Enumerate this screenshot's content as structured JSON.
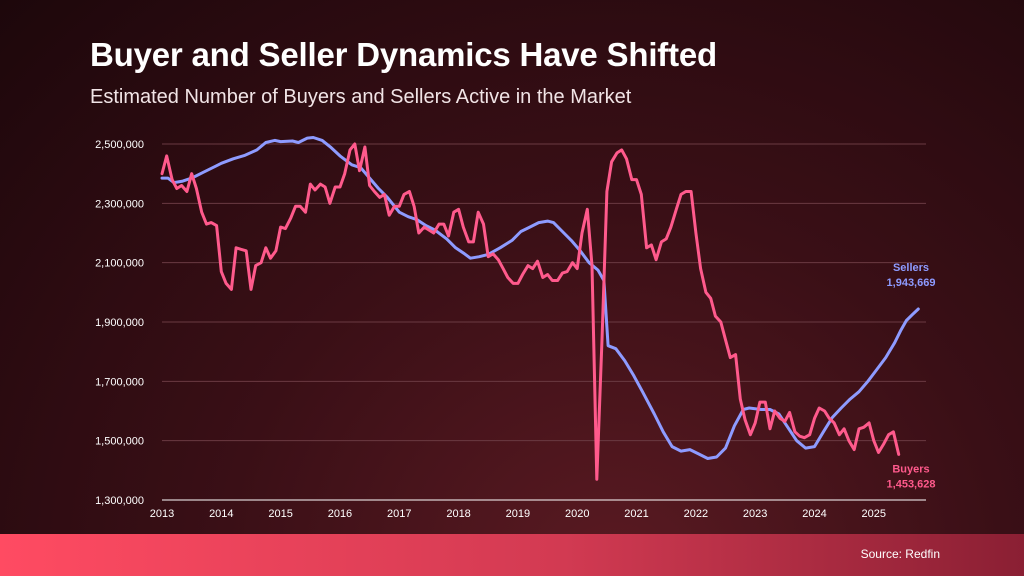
{
  "header": {
    "title": "Buyer and Seller Dynamics Have Shifted",
    "subtitle": "Estimated Number of Buyers and Sellers Active in the Market"
  },
  "footer": {
    "source": "Source: Redfin"
  },
  "colors": {
    "buyers": "#ff5a8c",
    "sellers": "#8e9bff",
    "grid": "#6a3a42",
    "axis": "#ffffff",
    "text": "#ffffff"
  },
  "chart_data": {
    "type": "line",
    "title": "Estimated Number of Buyers and Sellers Active in the Market",
    "xlabel": "",
    "ylabel": "",
    "xlim": [
      2013,
      2025.88
    ],
    "ylim": [
      1300000,
      2500000
    ],
    "yticks": [
      1300000,
      1500000,
      1700000,
      1900000,
      2100000,
      2300000,
      2500000
    ],
    "ytick_labels": [
      "1,300,000",
      "1,500,000",
      "1,700,000",
      "1,900,000",
      "2,100,000",
      "2,300,000",
      "2,500,000"
    ],
    "xticks": [
      2013,
      2014,
      2015,
      2016,
      2017,
      2018,
      2019,
      2020,
      2021,
      2022,
      2023,
      2024,
      2025
    ],
    "xtick_labels": [
      "2013",
      "2014",
      "2015",
      "2016",
      "2017",
      "2018",
      "2019",
      "2020",
      "2021",
      "2022",
      "2023",
      "2024",
      "2025"
    ],
    "grid": true,
    "series": [
      {
        "name": "Sellers",
        "end_label": "Sellers",
        "end_value_label": "1,943,669",
        "points": [
          [
            2013.0,
            2385000
          ],
          [
            2013.1,
            2385000
          ],
          [
            2013.2,
            2370000
          ],
          [
            2013.35,
            2375000
          ],
          [
            2013.5,
            2385000
          ],
          [
            2013.7,
            2405000
          ],
          [
            2013.9,
            2425000
          ],
          [
            2014.0,
            2435000
          ],
          [
            2014.2,
            2450000
          ],
          [
            2014.4,
            2462000
          ],
          [
            2014.6,
            2480000
          ],
          [
            2014.75,
            2505000
          ],
          [
            2014.9,
            2512000
          ],
          [
            2015.0,
            2508000
          ],
          [
            2015.2,
            2510000
          ],
          [
            2015.3,
            2505000
          ],
          [
            2015.45,
            2520000
          ],
          [
            2015.55,
            2522000
          ],
          [
            2015.7,
            2512000
          ],
          [
            2015.85,
            2488000
          ],
          [
            2016.0,
            2460000
          ],
          [
            2016.2,
            2430000
          ],
          [
            2016.35,
            2420000
          ],
          [
            2016.5,
            2385000
          ],
          [
            2016.65,
            2350000
          ],
          [
            2016.8,
            2320000
          ],
          [
            2017.0,
            2270000
          ],
          [
            2017.15,
            2255000
          ],
          [
            2017.3,
            2245000
          ],
          [
            2017.45,
            2225000
          ],
          [
            2017.6,
            2210000
          ],
          [
            2017.8,
            2180000
          ],
          [
            2017.95,
            2150000
          ],
          [
            2018.1,
            2130000
          ],
          [
            2018.2,
            2115000
          ],
          [
            2018.35,
            2120000
          ],
          [
            2018.5,
            2128000
          ],
          [
            2018.7,
            2150000
          ],
          [
            2018.9,
            2175000
          ],
          [
            2019.05,
            2205000
          ],
          [
            2019.2,
            2220000
          ],
          [
            2019.35,
            2235000
          ],
          [
            2019.5,
            2240000
          ],
          [
            2019.6,
            2235000
          ],
          [
            2019.75,
            2205000
          ],
          [
            2019.9,
            2175000
          ],
          [
            2020.05,
            2140000
          ],
          [
            2020.2,
            2100000
          ],
          [
            2020.35,
            2075000
          ],
          [
            2020.45,
            2040000
          ],
          [
            2020.52,
            1820000
          ],
          [
            2020.65,
            1810000
          ],
          [
            2020.8,
            1770000
          ],
          [
            2020.95,
            1720000
          ],
          [
            2021.1,
            1665000
          ],
          [
            2021.3,
            1590000
          ],
          [
            2021.45,
            1530000
          ],
          [
            2021.6,
            1480000
          ],
          [
            2021.75,
            1465000
          ],
          [
            2021.9,
            1470000
          ],
          [
            2022.05,
            1455000
          ],
          [
            2022.2,
            1440000
          ],
          [
            2022.35,
            1445000
          ],
          [
            2022.5,
            1475000
          ],
          [
            2022.65,
            1550000
          ],
          [
            2022.8,
            1605000
          ],
          [
            2022.9,
            1610000
          ],
          [
            2023.1,
            1605000
          ],
          [
            2023.25,
            1605000
          ],
          [
            2023.4,
            1590000
          ],
          [
            2023.55,
            1545000
          ],
          [
            2023.7,
            1500000
          ],
          [
            2023.85,
            1475000
          ],
          [
            2024.0,
            1480000
          ],
          [
            2024.15,
            1530000
          ],
          [
            2024.3,
            1578000
          ],
          [
            2024.45,
            1610000
          ],
          [
            2024.6,
            1640000
          ],
          [
            2024.75,
            1665000
          ],
          [
            2024.9,
            1700000
          ],
          [
            2025.05,
            1740000
          ],
          [
            2025.2,
            1780000
          ],
          [
            2025.35,
            1830000
          ],
          [
            2025.45,
            1870000
          ],
          [
            2025.55,
            1905000
          ],
          [
            2025.65,
            1925000
          ],
          [
            2025.75,
            1943669
          ]
        ]
      },
      {
        "name": "Buyers",
        "end_label": "Buyers",
        "end_value_label": "1,453,628",
        "points": [
          [
            2013.0,
            2400000
          ],
          [
            2013.08,
            2460000
          ],
          [
            2013.17,
            2380000
          ],
          [
            2013.25,
            2350000
          ],
          [
            2013.33,
            2360000
          ],
          [
            2013.42,
            2340000
          ],
          [
            2013.5,
            2400000
          ],
          [
            2013.58,
            2350000
          ],
          [
            2013.67,
            2270000
          ],
          [
            2013.75,
            2230000
          ],
          [
            2013.83,
            2235000
          ],
          [
            2013.92,
            2225000
          ],
          [
            2014.0,
            2070000
          ],
          [
            2014.08,
            2030000
          ],
          [
            2014.17,
            2010000
          ],
          [
            2014.25,
            2150000
          ],
          [
            2014.33,
            2145000
          ],
          [
            2014.42,
            2140000
          ],
          [
            2014.5,
            2010000
          ],
          [
            2014.58,
            2090000
          ],
          [
            2014.67,
            2100000
          ],
          [
            2014.75,
            2150000
          ],
          [
            2014.83,
            2115000
          ],
          [
            2014.92,
            2140000
          ],
          [
            2015.0,
            2220000
          ],
          [
            2015.08,
            2215000
          ],
          [
            2015.17,
            2250000
          ],
          [
            2015.25,
            2290000
          ],
          [
            2015.33,
            2290000
          ],
          [
            2015.42,
            2270000
          ],
          [
            2015.5,
            2365000
          ],
          [
            2015.58,
            2345000
          ],
          [
            2015.67,
            2365000
          ],
          [
            2015.75,
            2355000
          ],
          [
            2015.83,
            2300000
          ],
          [
            2015.92,
            2355000
          ],
          [
            2016.0,
            2355000
          ],
          [
            2016.08,
            2400000
          ],
          [
            2016.17,
            2480000
          ],
          [
            2016.25,
            2500000
          ],
          [
            2016.33,
            2410000
          ],
          [
            2016.42,
            2490000
          ],
          [
            2016.5,
            2360000
          ],
          [
            2016.58,
            2340000
          ],
          [
            2016.67,
            2320000
          ],
          [
            2016.75,
            2330000
          ],
          [
            2016.83,
            2260000
          ],
          [
            2016.92,
            2290000
          ],
          [
            2017.0,
            2290000
          ],
          [
            2017.08,
            2330000
          ],
          [
            2017.17,
            2340000
          ],
          [
            2017.25,
            2290000
          ],
          [
            2017.33,
            2200000
          ],
          [
            2017.42,
            2220000
          ],
          [
            2017.5,
            2210000
          ],
          [
            2017.58,
            2200000
          ],
          [
            2017.67,
            2230000
          ],
          [
            2017.75,
            2230000
          ],
          [
            2017.83,
            2190000
          ],
          [
            2017.92,
            2270000
          ],
          [
            2018.0,
            2280000
          ],
          [
            2018.08,
            2220000
          ],
          [
            2018.17,
            2170000
          ],
          [
            2018.25,
            2170000
          ],
          [
            2018.33,
            2270000
          ],
          [
            2018.42,
            2230000
          ],
          [
            2018.5,
            2120000
          ],
          [
            2018.58,
            2130000
          ],
          [
            2018.67,
            2110000
          ],
          [
            2018.75,
            2080000
          ],
          [
            2018.83,
            2050000
          ],
          [
            2018.92,
            2030000
          ],
          [
            2019.0,
            2030000
          ],
          [
            2019.08,
            2060000
          ],
          [
            2019.17,
            2090000
          ],
          [
            2019.25,
            2080000
          ],
          [
            2019.33,
            2105000
          ],
          [
            2019.42,
            2050000
          ],
          [
            2019.5,
            2060000
          ],
          [
            2019.58,
            2040000
          ],
          [
            2019.67,
            2040000
          ],
          [
            2019.75,
            2065000
          ],
          [
            2019.83,
            2070000
          ],
          [
            2019.92,
            2100000
          ],
          [
            2020.0,
            2080000
          ],
          [
            2020.08,
            2200000
          ],
          [
            2020.17,
            2280000
          ],
          [
            2020.25,
            2090000
          ],
          [
            2020.33,
            1370000
          ],
          [
            2020.42,
            1850000
          ],
          [
            2020.5,
            2340000
          ],
          [
            2020.58,
            2440000
          ],
          [
            2020.67,
            2470000
          ],
          [
            2020.75,
            2480000
          ],
          [
            2020.83,
            2450000
          ],
          [
            2020.92,
            2380000
          ],
          [
            2021.0,
            2380000
          ],
          [
            2021.08,
            2330000
          ],
          [
            2021.17,
            2150000
          ],
          [
            2021.25,
            2160000
          ],
          [
            2021.33,
            2110000
          ],
          [
            2021.42,
            2170000
          ],
          [
            2021.5,
            2180000
          ],
          [
            2021.58,
            2220000
          ],
          [
            2021.67,
            2280000
          ],
          [
            2021.75,
            2330000
          ],
          [
            2021.83,
            2340000
          ],
          [
            2021.92,
            2340000
          ],
          [
            2022.0,
            2200000
          ],
          [
            2022.08,
            2080000
          ],
          [
            2022.17,
            2000000
          ],
          [
            2022.25,
            1980000
          ],
          [
            2022.33,
            1920000
          ],
          [
            2022.42,
            1900000
          ],
          [
            2022.5,
            1840000
          ],
          [
            2022.58,
            1780000
          ],
          [
            2022.67,
            1790000
          ],
          [
            2022.75,
            1640000
          ],
          [
            2022.83,
            1570000
          ],
          [
            2022.92,
            1520000
          ],
          [
            2023.0,
            1560000
          ],
          [
            2023.08,
            1630000
          ],
          [
            2023.17,
            1630000
          ],
          [
            2023.25,
            1540000
          ],
          [
            2023.33,
            1600000
          ],
          [
            2023.42,
            1575000
          ],
          [
            2023.5,
            1565000
          ],
          [
            2023.58,
            1595000
          ],
          [
            2023.67,
            1530000
          ],
          [
            2023.75,
            1515000
          ],
          [
            2023.83,
            1510000
          ],
          [
            2023.92,
            1520000
          ],
          [
            2024.0,
            1575000
          ],
          [
            2024.08,
            1610000
          ],
          [
            2024.17,
            1600000
          ],
          [
            2024.25,
            1575000
          ],
          [
            2024.33,
            1560000
          ],
          [
            2024.42,
            1520000
          ],
          [
            2024.5,
            1540000
          ],
          [
            2024.58,
            1500000
          ],
          [
            2024.67,
            1470000
          ],
          [
            2024.75,
            1540000
          ],
          [
            2024.83,
            1545000
          ],
          [
            2024.92,
            1560000
          ],
          [
            2025.0,
            1500000
          ],
          [
            2025.08,
            1460000
          ],
          [
            2025.17,
            1490000
          ],
          [
            2025.25,
            1520000
          ],
          [
            2025.33,
            1530000
          ],
          [
            2025.42,
            1453628
          ]
        ]
      }
    ]
  }
}
